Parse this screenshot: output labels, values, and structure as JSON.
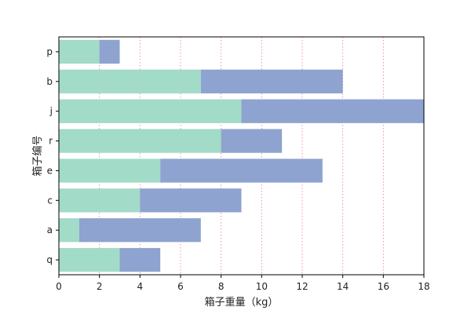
{
  "chart_data": {
    "type": "bar",
    "orientation": "horizontal",
    "stacked": true,
    "categories": [
      "q",
      "a",
      "c",
      "e",
      "r",
      "j",
      "b",
      "p"
    ],
    "series": [
      {
        "values": [
          3,
          1,
          4,
          5,
          8,
          9,
          7,
          2
        ],
        "color": "#a2dbc8"
      },
      {
        "values": [
          2,
          6,
          5,
          8,
          3,
          9,
          7,
          1
        ],
        "color": "#8ea3cf"
      }
    ],
    "xlabel": "箱子重量（kg）",
    "ylabel": "箱子编号",
    "xlim": [
      0,
      18
    ],
    "xticks": [
      0,
      2,
      4,
      6,
      8,
      10,
      12,
      14,
      16,
      18
    ],
    "grid": {
      "axis": "x",
      "style": "dotted",
      "color": "#e8789a"
    }
  }
}
